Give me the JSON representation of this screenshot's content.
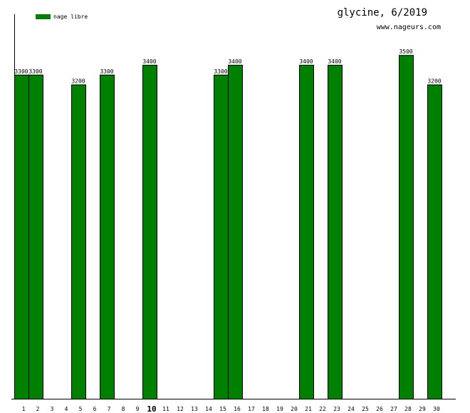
{
  "chart_data": {
    "type": "bar",
    "title": "glycine, 6/2019",
    "subtitle": "www.nageurs.com",
    "legend": [
      {
        "name": "nage libre",
        "color": "#008000"
      }
    ],
    "legend_position": "top-left",
    "categories": [
      "1",
      "2",
      "3",
      "4",
      "5",
      "6",
      "7",
      "8",
      "9",
      "10",
      "11",
      "12",
      "13",
      "14",
      "15",
      "16",
      "17",
      "18",
      "19",
      "20",
      "21",
      "22",
      "23",
      "24",
      "25",
      "26",
      "27",
      "28",
      "29",
      "30"
    ],
    "highlight_category": "10",
    "series": [
      {
        "name": "nage libre",
        "color": "#008000",
        "values": [
          3300,
          3300,
          null,
          null,
          3200,
          null,
          3300,
          null,
          null,
          3400,
          null,
          null,
          null,
          null,
          3300,
          3400,
          null,
          null,
          null,
          null,
          3400,
          null,
          3400,
          null,
          null,
          null,
          null,
          3500,
          null,
          3200
        ]
      }
    ],
    "ylim": [
      0,
      3915
    ],
    "grid": false
  }
}
